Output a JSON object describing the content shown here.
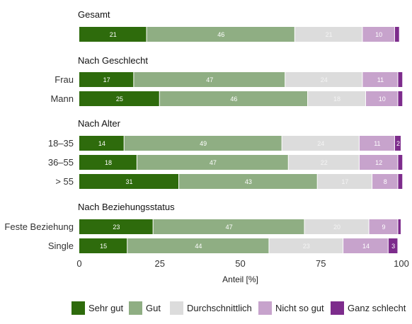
{
  "chart_data": {
    "type": "bar",
    "orientation": "horizontal",
    "stacked": true,
    "xlabel": "Anteil [%]",
    "xlim": [
      0,
      100
    ],
    "xticks": [
      0,
      25,
      50,
      75,
      100
    ],
    "grid": false,
    "legend_position": "bottom",
    "series": [
      {
        "name": "Sehr gut",
        "color": "#2e6b0c"
      },
      {
        "name": "Gut",
        "color": "#8fae83"
      },
      {
        "name": "Durchschnittlich",
        "color": "#dcdcdc"
      },
      {
        "name": "Nicht so gut",
        "color": "#c7a3cc"
      },
      {
        "name": "Ganz schlecht",
        "color": "#7d2c8c"
      }
    ],
    "groups": [
      {
        "title": "Gesamt",
        "rows": [
          {
            "label": "",
            "values": [
              21,
              46,
              21,
              10,
              1.5
            ]
          }
        ]
      },
      {
        "title": "Nach Geschlecht",
        "rows": [
          {
            "label": "Frau",
            "values": [
              17,
              47,
              24,
              11,
              1.5
            ]
          },
          {
            "label": "Mann",
            "values": [
              25,
              46,
              18,
              10,
              1.5
            ]
          }
        ]
      },
      {
        "title": "Nach Alter",
        "rows": [
          {
            "label": "18–35",
            "values": [
              14,
              49,
              24,
              11,
              2
            ]
          },
          {
            "label": "36–55",
            "values": [
              18,
              47,
              22,
              12,
              1.5
            ]
          },
          {
            "label": "> 55",
            "values": [
              31,
              43,
              17,
              8,
              1.5
            ]
          }
        ]
      },
      {
        "title": "Nach Beziehungsstatus",
        "rows": [
          {
            "label": "Feste Beziehung",
            "values": [
              23,
              47,
              20,
              9,
              1
            ]
          },
          {
            "label": "Single",
            "values": [
              15,
              44,
              23,
              14,
              3
            ]
          }
        ]
      }
    ]
  }
}
